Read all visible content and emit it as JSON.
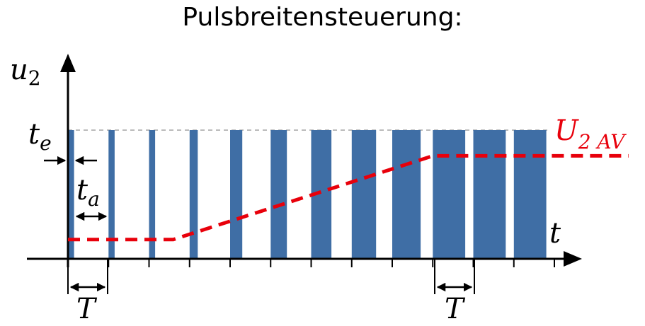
{
  "title": "Pulsbreitensteuerung:",
  "labels": {
    "y_axis": "u",
    "y_axis_sub": "2",
    "x_axis": "t",
    "t_on": "t",
    "t_on_sub": "e",
    "t_off": "t",
    "t_off_sub": "a",
    "period_left": "T",
    "period_right": "T",
    "average": "U",
    "average_sub": "2 AV"
  },
  "colors": {
    "pulse": "#3f6ea5",
    "average": "#e8000b",
    "axis": "#000000",
    "guide": "#bbbbbb"
  },
  "duty_cycles": [
    0.15,
    0.15,
    0.15,
    0.2,
    0.3,
    0.4,
    0.5,
    0.6,
    0.7,
    0.8,
    0.8,
    0.8
  ],
  "average_curve": {
    "flat_low_until_period": 2.6,
    "ramp_end_period": 9.0
  }
}
